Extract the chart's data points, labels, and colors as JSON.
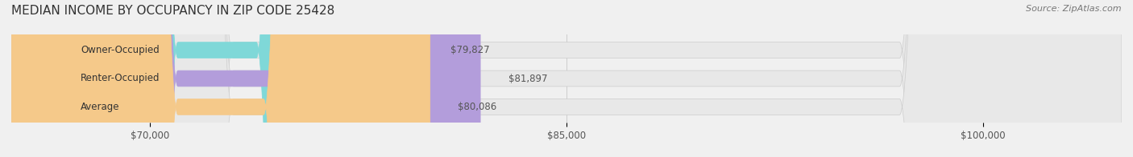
{
  "title": "MEDIAN INCOME BY OCCUPANCY IN ZIP CODE 25428",
  "source": "Source: ZipAtlas.com",
  "categories": [
    "Owner-Occupied",
    "Renter-Occupied",
    "Average"
  ],
  "values": [
    79827,
    81897,
    80086
  ],
  "labels": [
    "$79,827",
    "$81,897",
    "$80,086"
  ],
  "bar_colors": [
    "#7fd8d8",
    "#b39ddb",
    "#f5c98a"
  ],
  "bar_edge_colors": [
    "#7fd8d8",
    "#b39ddb",
    "#f5c98a"
  ],
  "bg_color": "#f0f0f0",
  "bar_bg_color": "#e8e8e8",
  "xlim_min": 65000,
  "xlim_max": 105000,
  "xticks": [
    70000,
    85000,
    100000
  ],
  "xtick_labels": [
    "$70,000",
    "$85,000",
    "$100,000"
  ],
  "title_fontsize": 11,
  "label_fontsize": 8.5,
  "tick_fontsize": 8.5,
  "source_fontsize": 8
}
